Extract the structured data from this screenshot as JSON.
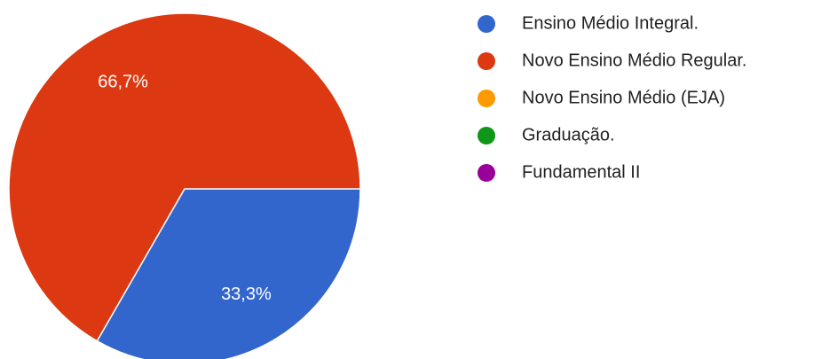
{
  "chart_data": {
    "type": "pie",
    "categories": [
      "Ensino Médio Integral.",
      "Novo Ensino Médio Regular.",
      "Novo Ensino Médio (EJA)",
      "Graduação.",
      "Fundamental II"
    ],
    "values": [
      33.3,
      66.7,
      0,
      0,
      0
    ],
    "value_labels": [
      "33,3%",
      "66,7%",
      null,
      null,
      null
    ],
    "colors": [
      "#3366cc",
      "#dc3912",
      "#ff9900",
      "#109618",
      "#990099"
    ],
    "legend": "right"
  }
}
